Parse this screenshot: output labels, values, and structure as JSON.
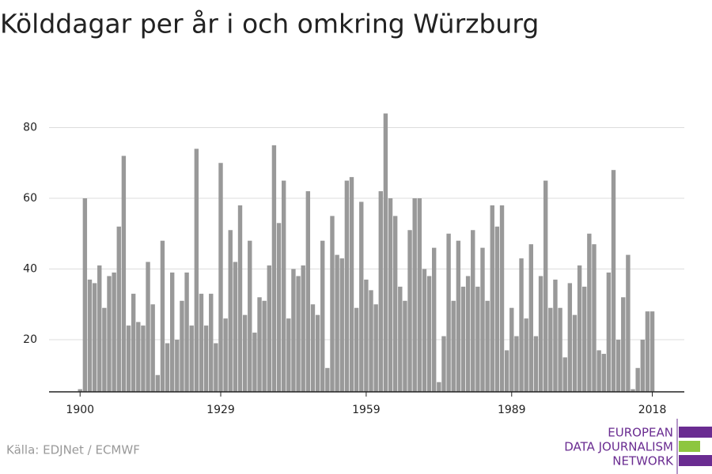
{
  "chart_data": {
    "type": "bar",
    "title": "Kölddagar per år i och omkring Würzburg",
    "source": "Källa: EDJNet / ECMWF",
    "x": [
      1900,
      1901,
      1902,
      1903,
      1904,
      1905,
      1906,
      1907,
      1908,
      1909,
      1910,
      1911,
      1912,
      1913,
      1914,
      1915,
      1916,
      1917,
      1918,
      1919,
      1920,
      1921,
      1922,
      1923,
      1924,
      1925,
      1926,
      1927,
      1928,
      1929,
      1930,
      1931,
      1932,
      1933,
      1934,
      1935,
      1936,
      1937,
      1938,
      1939,
      1940,
      1941,
      1942,
      1943,
      1944,
      1945,
      1946,
      1947,
      1948,
      1949,
      1950,
      1951,
      1952,
      1953,
      1954,
      1955,
      1956,
      1957,
      1958,
      1959,
      1960,
      1961,
      1962,
      1963,
      1964,
      1965,
      1966,
      1967,
      1968,
      1969,
      1970,
      1971,
      1972,
      1973,
      1974,
      1975,
      1976,
      1977,
      1978,
      1979,
      1980,
      1981,
      1982,
      1983,
      1984,
      1985,
      1986,
      1987,
      1988,
      1989,
      1990,
      1991,
      1992,
      1993,
      1994,
      1995,
      1996,
      1997,
      1998,
      1999,
      2000,
      2001,
      2002,
      2003,
      2004,
      2005,
      2006,
      2007,
      2008,
      2009,
      2010,
      2011,
      2012,
      2013,
      2014,
      2015,
      2016,
      2017,
      2018
    ],
    "values": [
      6,
      60,
      37,
      36,
      41,
      29,
      38,
      39,
      52,
      72,
      24,
      33,
      25,
      24,
      42,
      30,
      10,
      48,
      19,
      39,
      20,
      31,
      39,
      24,
      74,
      33,
      24,
      33,
      19,
      70,
      26,
      51,
      42,
      58,
      27,
      48,
      22,
      32,
      31,
      41,
      75,
      53,
      65,
      26,
      40,
      38,
      41,
      62,
      30,
      27,
      48,
      12,
      55,
      44,
      43,
      65,
      66,
      29,
      59,
      37,
      34,
      30,
      62,
      84,
      60,
      55,
      35,
      31,
      51,
      60,
      60,
      40,
      38,
      46,
      8,
      21,
      50,
      31,
      48,
      35,
      38,
      51,
      35,
      46,
      31,
      58,
      52,
      58,
      17,
      29,
      21,
      43,
      26,
      47,
      21,
      38,
      65,
      29,
      37,
      29,
      15,
      36,
      27,
      41,
      35,
      50,
      47,
      17,
      16,
      39,
      68,
      20,
      32,
      44,
      6,
      12,
      20,
      28,
      28
    ],
    "color": "#999999",
    "xlim": [
      1893.6,
      2024.6
    ],
    "xticks": [
      1900,
      1929,
      1959,
      1989,
      2018
    ],
    "ylim": [
      5.25,
      90
    ],
    "yticks": [
      20,
      40,
      60,
      80
    ],
    "grid": true
  },
  "logo": [
    "EUROPEAN",
    "DATA JOURNALISM",
    "NETWORK"
  ]
}
